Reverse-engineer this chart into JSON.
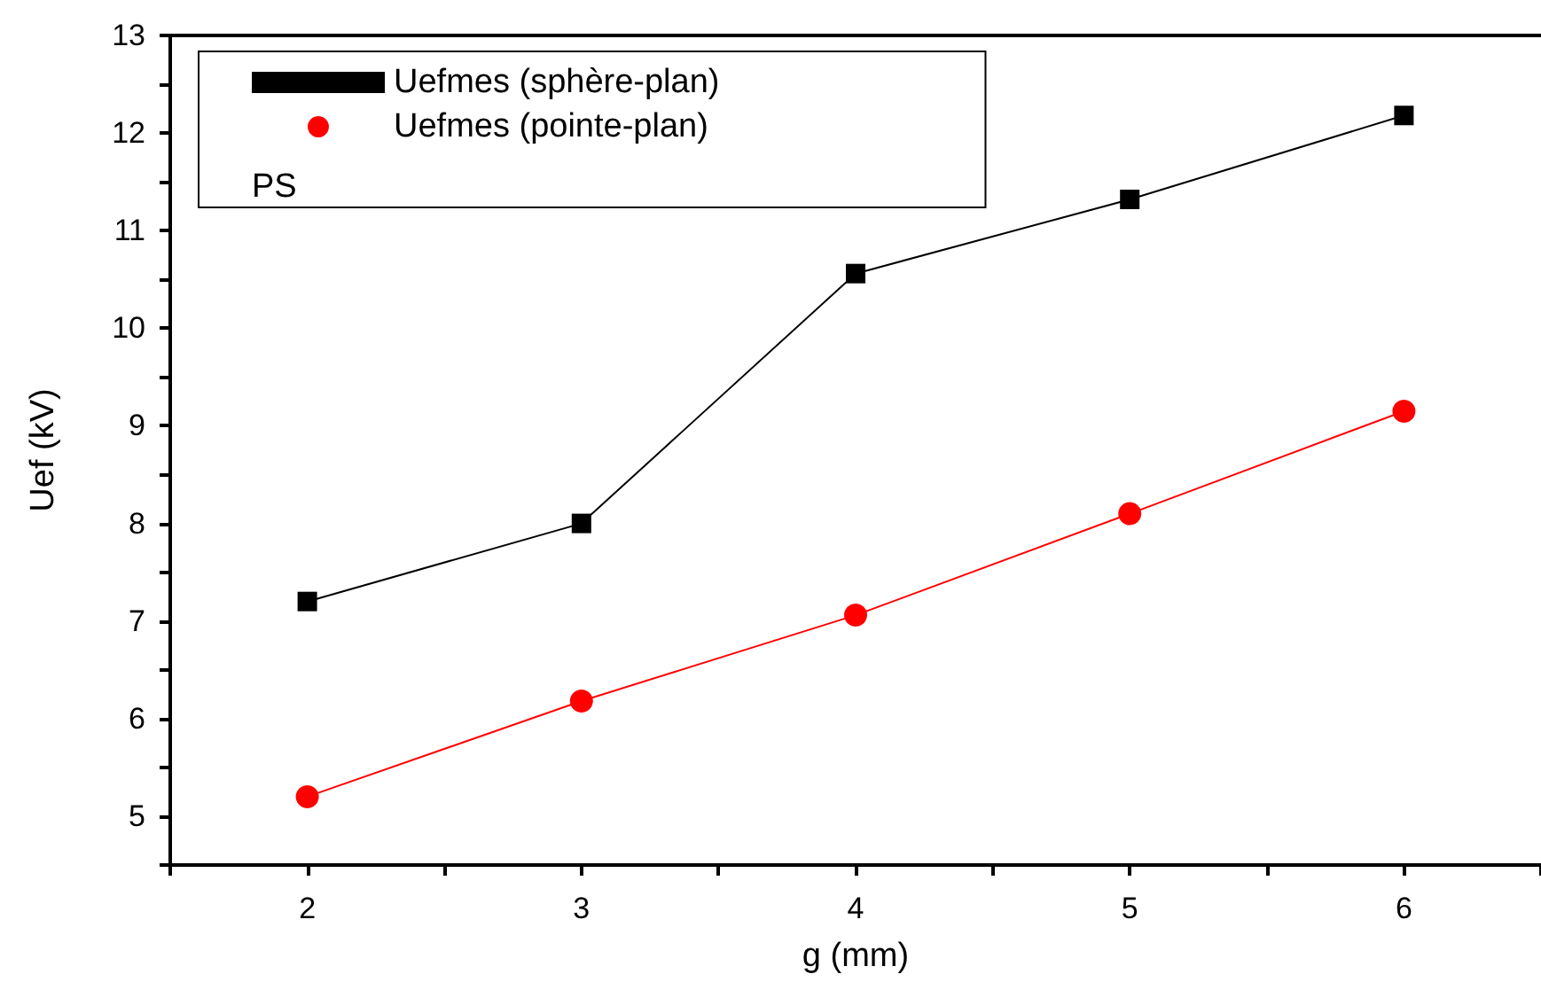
{
  "chart_data": {
    "type": "line",
    "xlabel": "g (mm)",
    "ylabel": "Uef (kV)",
    "x": [
      2,
      3,
      4,
      5,
      6
    ],
    "series": [
      {
        "name": "Uefmes (sphère-plan)",
        "color": "#000000",
        "marker": "square",
        "values": [
          7.2,
          8.0,
          10.56,
          11.32,
          12.18
        ]
      },
      {
        "name": "Uefmes (pointe-plan)",
        "color": "#ff0000",
        "marker": "circle",
        "values": [
          5.2,
          6.18,
          7.06,
          8.1,
          9.15
        ]
      }
    ],
    "annotations": [
      "PS"
    ],
    "xlim": [
      1.5,
      6.5
    ],
    "xticks": [
      {
        "value": 1.5,
        "label": null
      },
      2,
      {
        "value": 2.5,
        "label": null
      },
      3,
      {
        "value": 3.5,
        "label": null
      },
      4,
      {
        "value": 4.5,
        "label": null
      },
      5,
      {
        "value": 5.5,
        "label": null
      },
      6,
      {
        "value": 6.5,
        "label": null
      }
    ],
    "ylim": [
      4.5,
      13
    ],
    "yticks": [
      {
        "value": 4.5,
        "label": null
      },
      5,
      {
        "value": 5.5,
        "label": null
      },
      6,
      {
        "value": 6.5,
        "label": null
      },
      7,
      {
        "value": 7.5,
        "label": null
      },
      8,
      {
        "value": 8.5,
        "label": null
      },
      9,
      {
        "value": 9.5,
        "label": null
      },
      10,
      {
        "value": 10.5,
        "label": null
      },
      11,
      {
        "value": 11.5,
        "label": null
      },
      12,
      {
        "value": 12.5,
        "label": null
      },
      13
    ],
    "grid": false,
    "legend": "top left"
  }
}
